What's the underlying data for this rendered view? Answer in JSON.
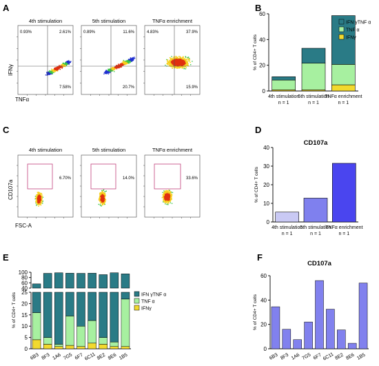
{
  "panel_letters": [
    "A",
    "B",
    "C",
    "D",
    "E",
    "F"
  ],
  "colors": {
    "ifn_tnf": "#2a7b86",
    "tnf": "#a7f0a0",
    "ifn": "#f2d92e",
    "cd107_d": [
      "#c9c9f4",
      "#7f80ee",
      "#4a45ef"
    ],
    "cd107_f": "#8181ee",
    "flow_gate": "#c0407a"
  },
  "panel_a": {
    "y_axis_label": "IFNγ",
    "x_axis_label": "TNFα",
    "plots": [
      {
        "title": "4th stimulation",
        "q_ul": "0.93%",
        "q_ur": "2.61%",
        "q_lr": "7.58%"
      },
      {
        "title": "5th stimulation",
        "q_ul": "0.89%",
        "q_ur": "11.6%",
        "q_lr": "20.7%"
      },
      {
        "title": "TNFα enrichment",
        "q_ul": "4.83%",
        "q_ur": "37.9%",
        "q_lr": "15.9%"
      }
    ]
  },
  "panel_c": {
    "y_axis_label": "CD107a",
    "x_axis_label": "FSC-A",
    "plots": [
      {
        "title": "4th stimulation",
        "gate_pct": "6.70%"
      },
      {
        "title": "5th stimulation",
        "gate_pct": "14.0%"
      },
      {
        "title": "TNFα enrichment",
        "gate_pct": "33.6%"
      }
    ]
  },
  "chart_data": [
    {
      "panel": "B",
      "type": "bar",
      "stacked": true,
      "categories": [
        "4th stimulation",
        "5th stimulation",
        "TNFα enrichment"
      ],
      "category_sub": [
        "n = 1",
        "n = 1",
        "n = 1"
      ],
      "series": [
        {
          "name": "IFNγ",
          "values": [
            0.9,
            0.9,
            4.8
          ]
        },
        {
          "name": "TNF α",
          "values": [
            7.6,
            20.7,
            15.9
          ]
        },
        {
          "name": "IFN γTNF α",
          "values": [
            2.6,
            11.6,
            37.9
          ]
        }
      ],
      "legend_order": [
        "IFN γTNF α",
        "TNF α",
        "IFNγ"
      ],
      "ylabel": "% of CD4+ T cells",
      "ylim": [
        0,
        60
      ],
      "yticks": [
        0,
        20,
        40,
        60
      ],
      "legend": "top-right"
    },
    {
      "panel": "D",
      "type": "bar",
      "title": "CD107a",
      "categories": [
        "4th stimulation",
        "5th stimulation",
        "TNFα enrichment"
      ],
      "category_sub": [
        "n = 1",
        "n = 1",
        "n = 1"
      ],
      "values": [
        5.3,
        12.8,
        31.5
      ],
      "ylabel": "% of CD4+ T cells",
      "ylim": [
        0,
        40
      ],
      "yticks": [
        0,
        10,
        20,
        30,
        40
      ]
    },
    {
      "panel": "E",
      "type": "bar",
      "stacked": true,
      "broken_axis": true,
      "categories": [
        "6B3",
        "8F3",
        "1A6",
        "7G5",
        "6F7",
        "6C11",
        "8E2",
        "8E6",
        "1B5"
      ],
      "series": [
        {
          "name": "IFNγ",
          "values": [
            4,
            2,
            1,
            1.5,
            1,
            2.5,
            2,
            1,
            1
          ]
        },
        {
          "name": "TNF α",
          "values": [
            12,
            3,
            1,
            13,
            9,
            10,
            3,
            2,
            21
          ]
        },
        {
          "name": "IFN γTNF α",
          "values": [
            40,
            91,
            96,
            82,
            86,
            84,
            86,
            95,
            72
          ]
        }
      ],
      "legend_order": [
        "IFN γTNF α",
        "TNF α",
        "IFNγ"
      ],
      "ylabel": "% of CD4+ T cells",
      "ylim_lower": [
        0,
        25
      ],
      "ylim_upper": [
        40,
        100
      ],
      "yticks_lower": [
        0,
        5,
        10,
        15,
        20,
        25
      ],
      "yticks_upper": [
        40,
        60,
        80,
        100
      ],
      "legend": "right"
    },
    {
      "panel": "F",
      "type": "bar",
      "title": "CD107a",
      "categories": [
        "6B3",
        "8F3",
        "1A6",
        "7G5",
        "6F7",
        "6C11",
        "8E2",
        "8E6",
        "1B5"
      ],
      "values": [
        34.5,
        16,
        7.5,
        22,
        56,
        32.5,
        15.5,
        4.5,
        54
      ],
      "ylabel": "% of CD4+ T cells",
      "ylim": [
        0,
        60
      ],
      "yticks": [
        0,
        20,
        40,
        60
      ]
    }
  ]
}
